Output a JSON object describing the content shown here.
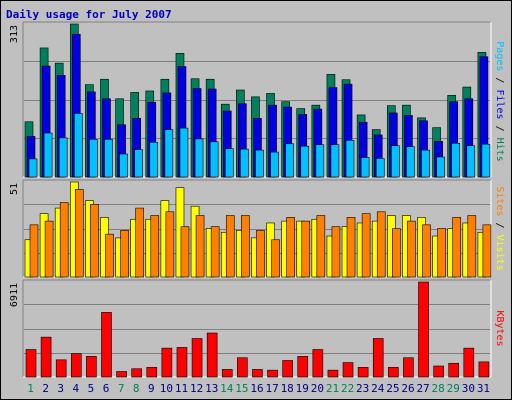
{
  "title": "Daily usage for July 2007",
  "colors": {
    "background": "#c0c0c0",
    "title": "#0000c0",
    "gridline": "#808080",
    "hits": "#00805c",
    "files": "#0000e0",
    "pages": "#00c0ff",
    "visits": "#ffff00",
    "sites": "#ff8000",
    "kbytes": "#ff0000",
    "weekday_label": "#000080",
    "weekend_label": "#00805c"
  },
  "chart_data": [
    {
      "type": "bar",
      "name": "hits-files-pages",
      "categories": [
        "1",
        "2",
        "3",
        "4",
        "5",
        "6",
        "7",
        "8",
        "9",
        "10",
        "11",
        "12",
        "13",
        "14",
        "15",
        "16",
        "17",
        "18",
        "19",
        "20",
        "21",
        "22",
        "23",
        "24",
        "25",
        "26",
        "27",
        "28",
        "29",
        "30",
        "31"
      ],
      "weekend_days": [
        "1",
        "7",
        "8",
        "14",
        "15",
        "21",
        "22",
        "28",
        "29"
      ],
      "ymax_label": "313",
      "ylim": [
        0,
        313
      ],
      "legend": [
        "Pages",
        "Files",
        "Hits"
      ],
      "series": [
        {
          "name": "Hits",
          "values": [
            113,
            264,
            233,
            313,
            189,
            200,
            160,
            173,
            176,
            200,
            253,
            201,
            200,
            149,
            178,
            164,
            171,
            154,
            140,
            147,
            210,
            199,
            127,
            97,
            146,
            147,
            121,
            101,
            167,
            184,
            255
          ]
        },
        {
          "name": "Files",
          "values": [
            83,
            227,
            208,
            292,
            174,
            160,
            107,
            120,
            153,
            172,
            226,
            181,
            180,
            135,
            150,
            120,
            147,
            143,
            128,
            139,
            183,
            190,
            112,
            86,
            131,
            126,
            115,
            73,
            154,
            160,
            246
          ]
        },
        {
          "name": "Pages",
          "values": [
            37,
            90,
            80,
            130,
            77,
            77,
            47,
            56,
            71,
            97,
            100,
            78,
            72,
            58,
            57,
            55,
            51,
            68,
            63,
            66,
            66,
            75,
            40,
            38,
            64,
            62,
            55,
            41,
            69,
            64,
            67
          ]
        }
      ]
    },
    {
      "type": "bar",
      "name": "visits-sites",
      "categories": [
        "1",
        "2",
        "3",
        "4",
        "5",
        "6",
        "7",
        "8",
        "9",
        "10",
        "11",
        "12",
        "13",
        "14",
        "15",
        "16",
        "17",
        "18",
        "19",
        "20",
        "21",
        "22",
        "23",
        "24",
        "25",
        "26",
        "27",
        "28",
        "29",
        "30",
        "31"
      ],
      "ymax_label": "51",
      "ylim": [
        0,
        51
      ],
      "legend": [
        "Sites",
        "Visits"
      ],
      "series": [
        {
          "name": "Visits",
          "values": [
            20,
            34,
            37,
            51,
            41,
            32,
            21,
            31,
            31,
            41,
            48,
            38,
            26,
            24,
            25,
            21,
            29,
            30,
            30,
            31,
            22,
            27,
            29,
            30,
            33,
            33,
            32,
            22,
            26,
            29,
            24
          ]
        },
        {
          "name": "Sites",
          "values": [
            28,
            30,
            40,
            47,
            39,
            23,
            25,
            37,
            33,
            35,
            27,
            33,
            27,
            33,
            33,
            25,
            20,
            32,
            30,
            33,
            27,
            32,
            34,
            35,
            26,
            30,
            28,
            26,
            32,
            33,
            28
          ]
        }
      ]
    },
    {
      "type": "bar",
      "name": "kbytes",
      "categories": [
        "1",
        "2",
        "3",
        "4",
        "5",
        "6",
        "7",
        "8",
        "9",
        "10",
        "11",
        "12",
        "13",
        "14",
        "15",
        "16",
        "17",
        "18",
        "19",
        "20",
        "21",
        "22",
        "23",
        "24",
        "25",
        "26",
        "27",
        "28",
        "29",
        "30",
        "31"
      ],
      "ymax_label": "6911",
      "ylim": [
        0,
        6911
      ],
      "legend": [
        "KBytes"
      ],
      "series": [
        {
          "name": "KBytes",
          "values": [
            2000,
            2900,
            1250,
            1700,
            1500,
            4700,
            400,
            600,
            700,
            2100,
            2150,
            2800,
            3200,
            550,
            1400,
            550,
            500,
            1200,
            1500,
            2000,
            500,
            1050,
            700,
            2800,
            700,
            1400,
            6911,
            800,
            1000,
            2100,
            1100
          ]
        }
      ]
    }
  ]
}
